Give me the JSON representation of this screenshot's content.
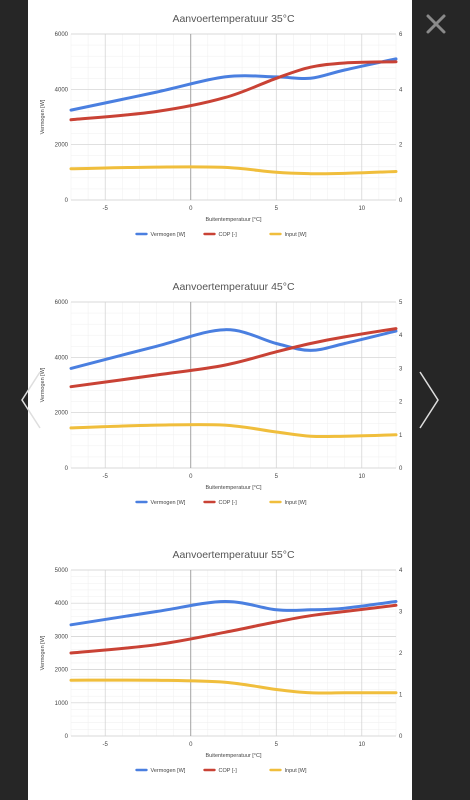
{
  "viewer": {
    "close_icon": "close-x-icon",
    "prev_icon": "chevron-left-icon",
    "next_icon": "chevron-right-icon"
  },
  "chart_data": [
    {
      "type": "line",
      "title": "Aanvoertemperatuur 35°C",
      "xlabel": "Buitentemperatuur [°C]",
      "ylabel": "Vermogen [W]",
      "y2label": "COP [-]",
      "xlim": [
        -7,
        12
      ],
      "ylim": [
        0,
        6000
      ],
      "y2lim": [
        0,
        6
      ],
      "xticks": [
        "-5",
        "0",
        "5",
        "10"
      ],
      "xtick_values": [
        -5,
        0,
        5,
        10
      ],
      "yticks": [
        "0",
        "2000",
        "4000",
        "6000"
      ],
      "y2ticks": [
        "0",
        "2",
        "4",
        "6"
      ],
      "grid": true,
      "legend": "bottom",
      "series": [
        {
          "name": "Vermogen [W]",
          "color": "#4a7fe0",
          "axis": "left",
          "x": [
            -7,
            -2,
            2,
            5,
            7,
            9,
            12
          ],
          "y": [
            3250,
            3900,
            4450,
            4450,
            4400,
            4700,
            5100
          ]
        },
        {
          "name": "COP [-]",
          "color": "#c94235",
          "axis": "right",
          "x": [
            -7,
            -2,
            2,
            5,
            7,
            9,
            12
          ],
          "y": [
            2.9,
            3.2,
            3.7,
            4.4,
            4.8,
            4.95,
            5.0
          ]
        },
        {
          "name": "Input [W]",
          "color": "#f0be3c",
          "axis": "left",
          "x": [
            -7,
            -2,
            2,
            5,
            7,
            9,
            12
          ],
          "y": [
            1130,
            1190,
            1180,
            1000,
            950,
            960,
            1030
          ]
        }
      ]
    },
    {
      "type": "line",
      "title": "Aanvoertemperatuur 45°C",
      "xlabel": "Buitentemperatuur [°C]",
      "ylabel": "Vermogen [W]",
      "y2label": "COP [-]",
      "xlim": [
        -7,
        12
      ],
      "ylim": [
        0,
        6000
      ],
      "y2lim": [
        0,
        5
      ],
      "xticks": [
        "-5",
        "0",
        "5",
        "10"
      ],
      "xtick_values": [
        -5,
        0,
        5,
        10
      ],
      "yticks": [
        "0",
        "2000",
        "4000",
        "6000"
      ],
      "y2ticks": [
        "0",
        "1",
        "2",
        "3",
        "4",
        "5"
      ],
      "grid": true,
      "legend": "bottom",
      "series": [
        {
          "name": "Vermogen [W]",
          "color": "#4a7fe0",
          "axis": "left",
          "x": [
            -7,
            -2,
            2,
            5,
            7,
            9,
            12
          ],
          "y": [
            3600,
            4400,
            5000,
            4500,
            4250,
            4500,
            4950
          ]
        },
        {
          "name": "COP [-]",
          "color": "#c94235",
          "axis": "right",
          "x": [
            -7,
            -2,
            2,
            5,
            7,
            9,
            12
          ],
          "y": [
            2.45,
            2.8,
            3.1,
            3.5,
            3.75,
            3.95,
            4.2
          ]
        },
        {
          "name": "Input [W]",
          "color": "#f0be3c",
          "axis": "left",
          "x": [
            -7,
            -2,
            2,
            5,
            7,
            9,
            12
          ],
          "y": [
            1450,
            1550,
            1550,
            1300,
            1150,
            1150,
            1200
          ]
        }
      ]
    },
    {
      "type": "line",
      "title": "Aanvoertemperatuur 55°C",
      "xlabel": "Buitentemperatuur [°C]",
      "ylabel": "Vermogen [W]",
      "y2label": "COP [-]",
      "xlim": [
        -7,
        12
      ],
      "ylim": [
        0,
        5000
      ],
      "y2lim": [
        0,
        4
      ],
      "xticks": [
        "-5",
        "0",
        "5",
        "10"
      ],
      "xtick_values": [
        -5,
        0,
        5,
        10
      ],
      "yticks": [
        "0",
        "1000",
        "2000",
        "3000",
        "4000",
        "5000"
      ],
      "y2ticks": [
        "0",
        "1",
        "2",
        "3",
        "4"
      ],
      "grid": true,
      "legend": "bottom",
      "series": [
        {
          "name": "Vermogen [W]",
          "color": "#4a7fe0",
          "axis": "left",
          "x": [
            -7,
            -2,
            2,
            5,
            7,
            9,
            12
          ],
          "y": [
            3350,
            3750,
            4050,
            3800,
            3800,
            3850,
            4050
          ]
        },
        {
          "name": "COP [-]",
          "color": "#c94235",
          "axis": "right",
          "x": [
            -7,
            -2,
            2,
            5,
            7,
            9,
            12
          ],
          "y": [
            2.0,
            2.2,
            2.5,
            2.75,
            2.9,
            3.0,
            3.15
          ]
        },
        {
          "name": "Input [W]",
          "color": "#f0be3c",
          "axis": "left",
          "x": [
            -7,
            -2,
            2,
            5,
            7,
            9,
            12
          ],
          "y": [
            1680,
            1680,
            1620,
            1400,
            1300,
            1300,
            1300
          ]
        }
      ]
    }
  ]
}
